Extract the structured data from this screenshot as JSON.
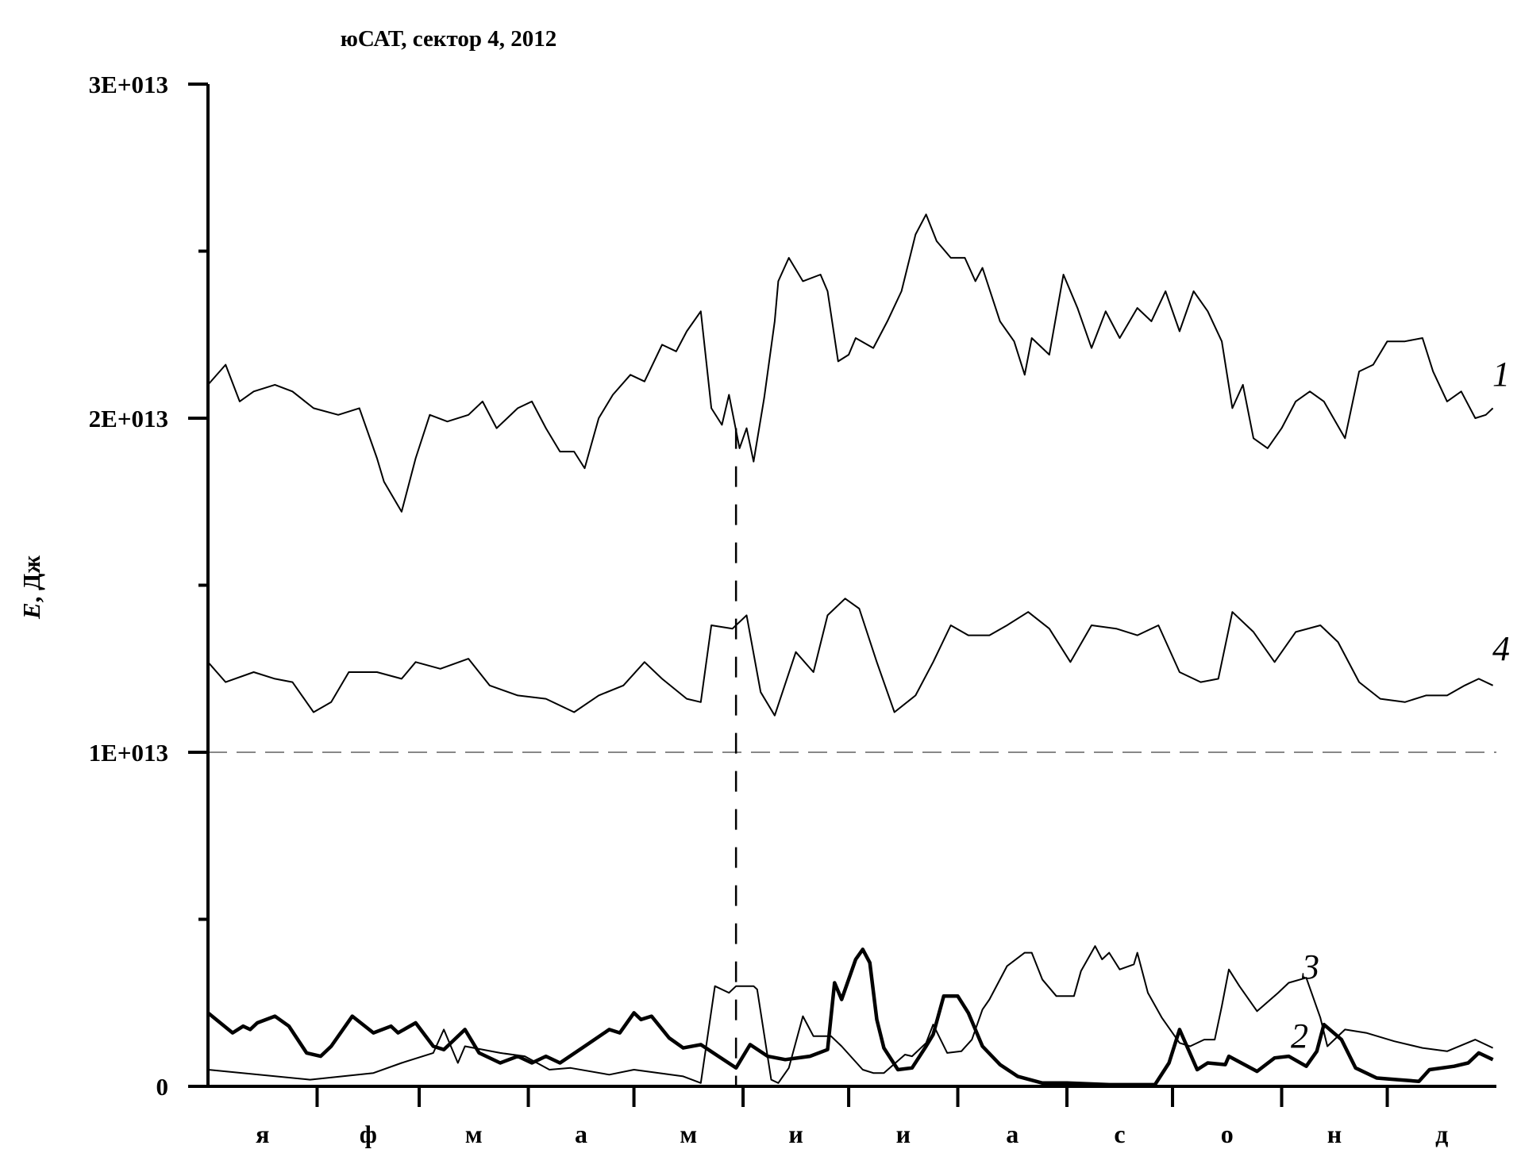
{
  "chart_data": {
    "type": "line",
    "title": "юСАТ, сектор 4, 2012",
    "ylabel_italic": "E",
    "ylabel_rest": ", Дж",
    "xlabel": "",
    "ylim": [
      0,
      30000000000000.0
    ],
    "y_ticks": [
      {
        "value": 0,
        "label": "0"
      },
      {
        "value": 10000000000000.0,
        "label": "1E+013"
      },
      {
        "value": 20000000000000.0,
        "label": "2E+013"
      },
      {
        "value": 30000000000000.0,
        "label": "3E+013"
      }
    ],
    "y_minor_ticks": [
      5000000000000.0,
      15000000000000.0,
      25000000000000.0
    ],
    "x_range": [
      "2012-01-01",
      "2012-12-31"
    ],
    "x_month_labels": [
      "я",
      "ф",
      "м",
      "а",
      "м",
      "и",
      "и",
      "а",
      "с",
      "о",
      "н",
      "д"
    ],
    "grid": false,
    "reference_lines": [
      {
        "orientation": "horizontal",
        "value": 10000000000000.0,
        "style": "dashed",
        "color": "#888888"
      },
      {
        "orientation": "vertical",
        "date": "2012-05-30",
        "from": 0,
        "to": 19700000000000.0,
        "style": "dashed",
        "color": "#000000"
      }
    ],
    "series": [
      {
        "name": "1",
        "line": "thin",
        "color": "#000000",
        "dates": [
          "2012-01-01",
          "2012-01-06",
          "2012-01-10",
          "2012-01-14",
          "2012-01-20",
          "2012-01-25",
          "2012-01-31",
          "2012-02-07",
          "2012-02-13",
          "2012-02-18",
          "2012-02-20",
          "2012-02-25",
          "2012-02-29",
          "2012-03-04",
          "2012-03-09",
          "2012-03-15",
          "2012-03-19",
          "2012-03-23",
          "2012-03-29",
          "2012-04-02",
          "2012-04-06",
          "2012-04-10",
          "2012-04-14",
          "2012-04-17",
          "2012-04-21",
          "2012-04-25",
          "2012-04-30",
          "2012-05-04",
          "2012-05-09",
          "2012-05-13",
          "2012-05-16",
          "2012-05-20",
          "2012-05-23",
          "2012-05-26",
          "2012-05-28",
          "2012-05-31",
          "2012-06-02",
          "2012-06-04",
          "2012-06-07",
          "2012-06-10",
          "2012-06-11",
          "2012-06-14",
          "2012-06-18",
          "2012-06-23",
          "2012-06-25",
          "2012-06-28",
          "2012-07-01",
          "2012-07-03",
          "2012-07-08",
          "2012-07-12",
          "2012-07-16",
          "2012-07-20",
          "2012-07-23",
          "2012-07-26",
          "2012-07-30",
          "2012-08-03",
          "2012-08-06",
          "2012-08-08",
          "2012-08-13",
          "2012-08-17",
          "2012-08-20",
          "2012-08-22",
          "2012-08-27",
          "2012-08-31",
          "2012-09-04",
          "2012-09-08",
          "2012-09-12",
          "2012-09-16",
          "2012-09-21",
          "2012-09-25",
          "2012-09-29",
          "2012-10-03",
          "2012-10-07",
          "2012-10-11",
          "2012-10-15",
          "2012-10-18",
          "2012-10-21",
          "2012-10-24",
          "2012-10-28",
          "2012-11-01",
          "2012-11-05",
          "2012-11-09",
          "2012-11-13",
          "2012-11-19",
          "2012-11-23",
          "2012-11-27",
          "2012-12-01",
          "2012-12-06",
          "2012-12-11",
          "2012-12-14",
          "2012-12-18",
          "2012-12-22",
          "2012-12-26",
          "2012-12-29",
          "2012-12-31"
        ],
        "values": [
          21000000000000.0,
          21600000000000.0,
          20500000000000.0,
          20800000000000.0,
          21000000000000.0,
          20800000000000.0,
          20300000000000.0,
          20100000000000.0,
          20300000000000.0,
          18800000000000.0,
          18100000000000.0,
          17200000000000.0,
          18800000000000.0,
          20100000000000.0,
          19900000000000.0,
          20100000000000.0,
          20500000000000.0,
          19700000000000.0,
          20300000000000.0,
          20500000000000.0,
          19700000000000.0,
          19000000000000.0,
          19000000000000.0,
          18500000000000.0,
          20000000000000.0,
          20700000000000.0,
          21300000000000.0,
          21100000000000.0,
          22200000000000.0,
          22000000000000.0,
          22600000000000.0,
          23200000000000.0,
          20300000000000.0,
          19800000000000.0,
          20700000000000.0,
          19100000000000.0,
          19700000000000.0,
          18700000000000.0,
          20600000000000.0,
          22900000000000.0,
          24100000000000.0,
          24800000000000.0,
          24100000000000.0,
          24300000000000.0,
          23800000000000.0,
          21700000000000.0,
          21900000000000.0,
          22400000000000.0,
          22100000000000.0,
          22900000000000.0,
          23800000000000.0,
          25500000000000.0,
          26100000000000.0,
          25300000000000.0,
          24800000000000.0,
          24800000000000.0,
          24100000000000.0,
          24500000000000.0,
          22900000000000.0,
          22300000000000.0,
          21300000000000.0,
          22400000000000.0,
          21900000000000.0,
          24300000000000.0,
          23300000000000.0,
          22100000000000.0,
          23200000000000.0,
          22400000000000.0,
          23300000000000.0,
          22900000000000.0,
          23800000000000.0,
          22600000000000.0,
          23800000000000.0,
          23200000000000.0,
          22300000000000.0,
          20300000000000.0,
          21000000000000.0,
          19400000000000.0,
          19100000000000.0,
          19700000000000.0,
          20500000000000.0,
          20800000000000.0,
          20500000000000.0,
          19400000000000.0,
          21400000000000.0,
          21600000000000.0,
          22300000000000.0,
          22300000000000.0,
          22400000000000.0,
          21400000000000.0,
          20500000000000.0,
          20800000000000.0,
          20000000000000.0,
          20100000000000.0,
          20300000000000.0
        ]
      },
      {
        "name": "4",
        "line": "thin",
        "color": "#000000",
        "dates": [
          "2012-01-01",
          "2012-01-06",
          "2012-01-14",
          "2012-01-20",
          "2012-01-25",
          "2012-01-31",
          "2012-02-05",
          "2012-02-10",
          "2012-02-18",
          "2012-02-25",
          "2012-02-29",
          "2012-03-07",
          "2012-03-15",
          "2012-03-21",
          "2012-03-29",
          "2012-04-06",
          "2012-04-14",
          "2012-04-21",
          "2012-04-28",
          "2012-05-04",
          "2012-05-09",
          "2012-05-16",
          "2012-05-20",
          "2012-05-23",
          "2012-05-29",
          "2012-06-02",
          "2012-06-06",
          "2012-06-10",
          "2012-06-16",
          "2012-06-21",
          "2012-06-25",
          "2012-06-30",
          "2012-07-04",
          "2012-07-09",
          "2012-07-14",
          "2012-07-20",
          "2012-07-25",
          "2012-07-30",
          "2012-08-04",
          "2012-08-10",
          "2012-08-15",
          "2012-08-21",
          "2012-08-27",
          "2012-09-02",
          "2012-09-08",
          "2012-09-15",
          "2012-09-21",
          "2012-09-27",
          "2012-10-03",
          "2012-10-09",
          "2012-10-14",
          "2012-10-18",
          "2012-10-24",
          "2012-10-30",
          "2012-11-05",
          "2012-11-12",
          "2012-11-17",
          "2012-11-23",
          "2012-11-29",
          "2012-12-06",
          "2012-12-12",
          "2012-12-18",
          "2012-12-23",
          "2012-12-27",
          "2012-12-31"
        ],
        "values": [
          12700000000000.0,
          12100000000000.0,
          12400000000000.0,
          12200000000000.0,
          12100000000000.0,
          11200000000000.0,
          11500000000000.0,
          12400000000000.0,
          12400000000000.0,
          12200000000000.0,
          12700000000000.0,
          12500000000000.0,
          12800000000000.0,
          12000000000000.0,
          11700000000000.0,
          11600000000000.0,
          11200000000000.0,
          11700000000000.0,
          12000000000000.0,
          12700000000000.0,
          12200000000000.0,
          11600000000000.0,
          11500000000000.0,
          13800000000000.0,
          13700000000000.0,
          14100000000000.0,
          11800000000000.0,
          11100000000000.0,
          13000000000000.0,
          12400000000000.0,
          14100000000000.0,
          14600000000000.0,
          14300000000000.0,
          12700000000000.0,
          11200000000000.0,
          11700000000000.0,
          12700000000000.0,
          13800000000000.0,
          13500000000000.0,
          13500000000000.0,
          13800000000000.0,
          14200000000000.0,
          13700000000000.0,
          12700000000000.0,
          13800000000000.0,
          13700000000000.0,
          13500000000000.0,
          13800000000000.0,
          12400000000000.0,
          12100000000000.0,
          12200000000000.0,
          14200000000000.0,
          13600000000000.0,
          12700000000000.0,
          13600000000000.0,
          13800000000000.0,
          13300000000000.0,
          12100000000000.0,
          11600000000000.0,
          11500000000000.0,
          11700000000000.0,
          11700000000000.0,
          12000000000000.0,
          12200000000000.0,
          12000000000000.0
        ]
      },
      {
        "name": "3",
        "line": "thin",
        "color": "#000000",
        "dates": [
          "2012-01-01",
          "2012-01-30",
          "2012-02-17",
          "2012-02-25",
          "2012-03-05",
          "2012-03-08",
          "2012-03-12",
          "2012-03-14",
          "2012-03-24",
          "2012-03-31",
          "2012-04-07",
          "2012-04-13",
          "2012-04-24",
          "2012-05-01",
          "2012-05-15",
          "2012-05-20",
          "2012-05-24",
          "2012-05-28",
          "2012-05-30",
          "2012-06-04",
          "2012-06-05",
          "2012-06-09",
          "2012-06-11",
          "2012-06-14",
          "2012-06-18",
          "2012-06-21",
          "2012-06-26",
          "2012-06-29",
          "2012-07-05",
          "2012-07-08",
          "2012-07-11",
          "2012-07-17",
          "2012-07-19",
          "2012-07-23",
          "2012-07-25",
          "2012-07-29",
          "2012-08-02",
          "2012-08-05",
          "2012-08-08",
          "2012-08-10",
          "2012-08-15",
          "2012-08-20",
          "2012-08-22",
          "2012-08-25",
          "2012-08-29",
          "2012-09-03",
          "2012-09-05",
          "2012-09-09",
          "2012-09-11",
          "2012-09-13",
          "2012-09-16",
          "2012-09-20",
          "2012-09-21",
          "2012-09-24",
          "2012-09-28",
          "2012-10-03",
          "2012-10-06",
          "2012-10-10",
          "2012-10-13",
          "2012-10-15",
          "2012-10-17",
          "2012-10-20",
          "2012-10-25",
          "2012-10-31",
          "2012-11-03",
          "2012-11-08",
          "2012-11-12",
          "2012-11-14",
          "2012-11-19",
          "2012-11-25",
          "2012-12-03",
          "2012-12-11",
          "2012-12-18",
          "2012-12-26",
          "2012-12-31"
        ],
        "values": [
          500000000000.0,
          200000000000.0,
          400000000000.0,
          700000000000.0,
          1000000000000.0,
          1700000000000.0,
          700000000000.0,
          1200000000000.0,
          1000000000000.0,
          900000000000.0,
          500000000000.0,
          550000000000.0,
          350000000000.0,
          500000000000.0,
          300000000000.0,
          100000000000.0,
          3000000000000.0,
          2800000000000.0,
          3000000000000.0,
          3000000000000.0,
          2900000000000.0,
          200000000000.0,
          100000000000.0,
          550000000000.0,
          2100000000000.0,
          1500000000000.0,
          1500000000000.0,
          1200000000000.0,
          500000000000.0,
          400000000000.0,
          400000000000.0,
          950000000000.0,
          900000000000.0,
          1300000000000.0,
          1850000000000.0,
          1000000000000.0,
          1050000000000.0,
          1400000000000.0,
          2300000000000.0,
          2600000000000.0,
          3600000000000.0,
          4000000000000.0,
          4000000000000.0,
          3200000000000.0,
          2700000000000.0,
          2700000000000.0,
          3450000000000.0,
          4200000000000.0,
          3800000000000.0,
          4000000000000.0,
          3500000000000.0,
          3650000000000.0,
          4000000000000.0,
          2800000000000.0,
          2050000000000.0,
          1300000000000.0,
          1200000000000.0,
          1400000000000.0,
          1400000000000.0,
          2400000000000.0,
          3500000000000.0,
          3000000000000.0,
          2250000000000.0,
          2800000000000.0,
          3100000000000.0,
          3250000000000.0,
          2050000000000.0,
          1200000000000.0,
          1700000000000.0,
          1600000000000.0,
          1350000000000.0,
          1150000000000.0,
          1050000000000.0,
          1400000000000.0,
          1150000000000.0
        ]
      },
      {
        "name": "2",
        "line": "thick",
        "color": "#000000",
        "dates": [
          "2012-01-01",
          "2012-01-08",
          "2012-01-11",
          "2012-01-13",
          "2012-01-15",
          "2012-01-20",
          "2012-01-24",
          "2012-01-29",
          "2012-02-02",
          "2012-02-05",
          "2012-02-11",
          "2012-02-17",
          "2012-02-22",
          "2012-02-24",
          "2012-02-29",
          "2012-03-05",
          "2012-03-08",
          "2012-03-14",
          "2012-03-18",
          "2012-03-24",
          "2012-03-29",
          "2012-04-02",
          "2012-04-06",
          "2012-04-10",
          "2012-04-17",
          "2012-04-24",
          "2012-04-27",
          "2012-05-01",
          "2012-05-03",
          "2012-05-06",
          "2012-05-11",
          "2012-05-15",
          "2012-05-20",
          "2012-05-25",
          "2012-05-30",
          "2012-06-03",
          "2012-06-08",
          "2012-06-13",
          "2012-06-20",
          "2012-06-25",
          "2012-06-27",
          "2012-06-29",
          "2012-07-03",
          "2012-07-05",
          "2012-07-07",
          "2012-07-09",
          "2012-07-11",
          "2012-07-15",
          "2012-07-19",
          "2012-07-23",
          "2012-07-25",
          "2012-07-28",
          "2012-08-01",
          "2012-08-04",
          "2012-08-08",
          "2012-08-13",
          "2012-08-18",
          "2012-08-25",
          "2012-09-01",
          "2012-09-13",
          "2012-09-26",
          "2012-09-30",
          "2012-10-03",
          "2012-10-08",
          "2012-10-11",
          "2012-10-16",
          "2012-10-17",
          "2012-10-25",
          "2012-10-30",
          "2012-11-03",
          "2012-11-08",
          "2012-11-11",
          "2012-11-13",
          "2012-11-18",
          "2012-11-22",
          "2012-11-28",
          "2012-12-04",
          "2012-12-10",
          "2012-12-13",
          "2012-12-20",
          "2012-12-24",
          "2012-12-27",
          "2012-12-31"
        ],
        "values": [
          2200000000000.0,
          1600000000000.0,
          1800000000000.0,
          1700000000000.0,
          1900000000000.0,
          2100000000000.0,
          1800000000000.0,
          1000000000000.0,
          900000000000.0,
          1200000000000.0,
          2100000000000.0,
          1600000000000.0,
          1800000000000.0,
          1600000000000.0,
          1900000000000.0,
          1200000000000.0,
          1100000000000.0,
          1700000000000.0,
          1000000000000.0,
          700000000000.0,
          900000000000.0,
          700000000000.0,
          900000000000.0,
          700000000000.0,
          1200000000000.0,
          1700000000000.0,
          1600000000000.0,
          2200000000000.0,
          2000000000000.0,
          2100000000000.0,
          1450000000000.0,
          1150000000000.0,
          1250000000000.0,
          900000000000.0,
          550000000000.0,
          1250000000000.0,
          900000000000.0,
          800000000000.0,
          900000000000.0,
          1100000000000.0,
          3100000000000.0,
          2600000000000.0,
          3800000000000.0,
          4100000000000.0,
          3700000000000.0,
          2000000000000.0,
          1150000000000.0,
          500000000000.0,
          550000000000.0,
          1200000000000.0,
          1550000000000.0,
          2700000000000.0,
          2700000000000.0,
          2200000000000.0,
          1200000000000.0,
          650000000000.0,
          300000000000.0,
          100000000000.0,
          100000000000.0,
          50000000000.0,
          50000000000.0,
          700000000000.0,
          1700000000000.0,
          500000000000.0,
          700000000000.0,
          650000000000.0,
          900000000000.0,
          450000000000.0,
          850000000000.0,
          900000000000.0,
          600000000000.0,
          1050000000000.0,
          1850000000000.0,
          1400000000000.0,
          550000000000.0,
          250000000000.0,
          200000000000.0,
          150000000000.0,
          500000000000.0,
          600000000000.0,
          700000000000.0,
          1000000000000.0,
          800000000000.0
        ]
      }
    ]
  }
}
